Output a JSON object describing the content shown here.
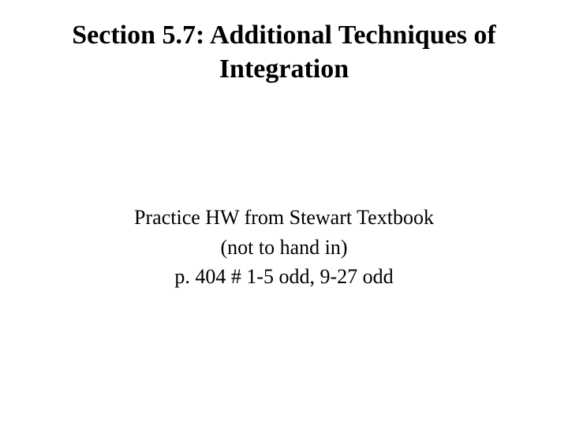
{
  "slide": {
    "title": "Section 5.7: Additional Techniques of Integration",
    "body_lines": {
      "line1": "Practice HW from Stewart Textbook",
      "line2": "(not to hand in)",
      "line3": "p. 404 # 1-5 odd, 9-27 odd"
    }
  },
  "style": {
    "background_color": "#ffffff",
    "text_color": "#000000",
    "title_fontsize": 34,
    "title_fontweight": "bold",
    "body_fontsize": 26,
    "font_family": "Times New Roman"
  }
}
